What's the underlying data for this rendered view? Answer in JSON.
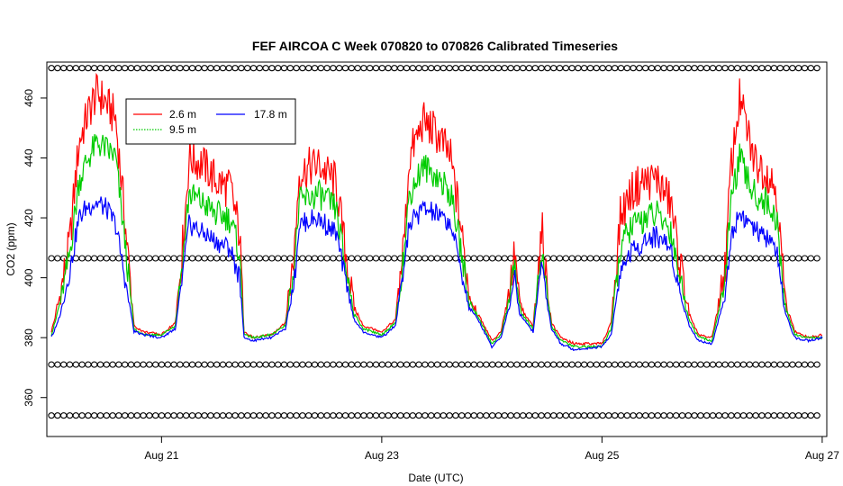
{
  "chart_data": {
    "type": "line",
    "title": "FEF AIRCOA C  Week 070820 to 070826  Calibrated Timeseries",
    "xlabel": "Date (UTC)",
    "ylabel": "CO2 (ppm)",
    "x_unit": "date",
    "xlim": [
      "2007-08-19T23:00",
      "2007-08-27T01:00"
    ],
    "ylim": [
      347,
      472
    ],
    "x_ticks": [
      {
        "label": "Aug 21",
        "value": "2007-08-21T00:00"
      },
      {
        "label": "Aug 23",
        "value": "2007-08-23T00:00"
      },
      {
        "label": "Aug 25",
        "value": "2007-08-25T00:00"
      },
      {
        "label": "Aug 27",
        "value": "2007-08-27T00:00"
      }
    ],
    "y_ticks": [
      360,
      380,
      400,
      420,
      440,
      460
    ],
    "grid": false,
    "legend": {
      "placement": "top-left",
      "entries": [
        {
          "name": "2.6 m",
          "color": "#ff0000",
          "style": "solid"
        },
        {
          "name": "9.5 m",
          "color": "#00cc00",
          "style": "dotted"
        },
        {
          "name": "17.8 m",
          "color": "#0000ff",
          "style": "solid"
        }
      ]
    },
    "series": [
      {
        "name": "2.6 m",
        "color": "#ff0000",
        "points": [
          [
            "2007-08-20T00:00",
            382
          ],
          [
            "2007-08-20T02:00",
            395
          ],
          [
            "2007-08-20T04:00",
            412
          ],
          [
            "2007-08-20T06:00",
            445
          ],
          [
            "2007-08-20T08:00",
            455
          ],
          [
            "2007-08-20T10:00",
            462
          ],
          [
            "2007-08-20T12:00",
            458
          ],
          [
            "2007-08-20T14:00",
            453
          ],
          [
            "2007-08-20T16:00",
            420
          ],
          [
            "2007-08-20T18:00",
            384
          ],
          [
            "2007-08-20T20:00",
            382
          ],
          [
            "2007-08-21T00:00",
            381
          ],
          [
            "2007-08-21T03:00",
            385
          ],
          [
            "2007-08-21T05:00",
            418
          ],
          [
            "2007-08-21T06:00",
            440
          ],
          [
            "2007-08-21T09:00",
            438
          ],
          [
            "2007-08-21T12:00",
            432
          ],
          [
            "2007-08-21T15:00",
            430
          ],
          [
            "2007-08-21T17:00",
            415
          ],
          [
            "2007-08-21T18:00",
            382
          ],
          [
            "2007-08-21T20:00",
            380
          ],
          [
            "2007-08-22T00:00",
            381
          ],
          [
            "2007-08-22T03:00",
            385
          ],
          [
            "2007-08-22T05:00",
            410
          ],
          [
            "2007-08-22T06:00",
            435
          ],
          [
            "2007-08-22T10:00",
            438
          ],
          [
            "2007-08-22T14:00",
            432
          ],
          [
            "2007-08-22T16:00",
            410
          ],
          [
            "2007-08-22T18:00",
            390
          ],
          [
            "2007-08-22T20:00",
            384
          ],
          [
            "2007-08-23T00:00",
            382
          ],
          [
            "2007-08-23T03:00",
            386
          ],
          [
            "2007-08-23T05:00",
            415
          ],
          [
            "2007-08-23T06:00",
            440
          ],
          [
            "2007-08-23T09:00",
            452
          ],
          [
            "2007-08-23T12:00",
            448
          ],
          [
            "2007-08-23T15:00",
            440
          ],
          [
            "2007-08-23T17:00",
            420
          ],
          [
            "2007-08-23T19:00",
            395
          ],
          [
            "2007-08-23T21:00",
            388
          ],
          [
            "2007-08-24T00:00",
            379
          ],
          [
            "2007-08-24T02:00",
            382
          ],
          [
            "2007-08-24T04:00",
            398
          ],
          [
            "2007-08-24T05:00",
            408
          ],
          [
            "2007-08-24T06:00",
            392
          ],
          [
            "2007-08-24T07:00",
            388
          ],
          [
            "2007-08-24T08:00",
            386
          ],
          [
            "2007-08-24T09:00",
            384
          ],
          [
            "2007-08-24T10:00",
            402
          ],
          [
            "2007-08-24T11:00",
            415
          ],
          [
            "2007-08-24T12:00",
            398
          ],
          [
            "2007-08-24T13:00",
            385
          ],
          [
            "2007-08-24T15:00",
            380
          ],
          [
            "2007-08-24T18:00",
            378
          ],
          [
            "2007-08-25T00:00",
            378
          ],
          [
            "2007-08-25T02:00",
            385
          ],
          [
            "2007-08-25T04:00",
            420
          ],
          [
            "2007-08-25T06:00",
            428
          ],
          [
            "2007-08-25T09:00",
            432
          ],
          [
            "2007-08-25T12:00",
            433
          ],
          [
            "2007-08-25T15:00",
            425
          ],
          [
            "2007-08-25T17:00",
            405
          ],
          [
            "2007-08-25T19:00",
            388
          ],
          [
            "2007-08-25T21:00",
            381
          ],
          [
            "2007-08-26T00:00",
            380
          ],
          [
            "2007-08-26T03:00",
            405
          ],
          [
            "2007-08-26T04:00",
            435
          ],
          [
            "2007-08-26T06:00",
            460
          ],
          [
            "2007-08-26T09:00",
            440
          ],
          [
            "2007-08-26T12:00",
            435
          ],
          [
            "2007-08-26T14:00",
            430
          ],
          [
            "2007-08-26T15:00",
            410
          ],
          [
            "2007-08-26T16:00",
            392
          ],
          [
            "2007-08-26T18:00",
            382
          ],
          [
            "2007-08-26T21:00",
            380
          ],
          [
            "2007-08-27T00:00",
            381
          ]
        ]
      },
      {
        "name": "9.5 m",
        "color": "#00cc00",
        "points": [
          [
            "2007-08-20T00:00",
            381
          ],
          [
            "2007-08-20T02:00",
            392
          ],
          [
            "2007-08-20T04:00",
            408
          ],
          [
            "2007-08-20T06:00",
            432
          ],
          [
            "2007-08-20T08:00",
            440
          ],
          [
            "2007-08-20T10:00",
            445
          ],
          [
            "2007-08-20T12:00",
            443
          ],
          [
            "2007-08-20T14:00",
            440
          ],
          [
            "2007-08-20T16:00",
            412
          ],
          [
            "2007-08-20T18:00",
            383
          ],
          [
            "2007-08-20T20:00",
            381
          ],
          [
            "2007-08-21T00:00",
            381
          ],
          [
            "2007-08-21T03:00",
            384
          ],
          [
            "2007-08-21T05:00",
            412
          ],
          [
            "2007-08-21T06:00",
            428
          ],
          [
            "2007-08-21T09:00",
            425
          ],
          [
            "2007-08-21T12:00",
            421
          ],
          [
            "2007-08-21T15:00",
            420
          ],
          [
            "2007-08-21T17:00",
            408
          ],
          [
            "2007-08-21T18:00",
            381
          ],
          [
            "2007-08-21T20:00",
            380
          ],
          [
            "2007-08-22T00:00",
            381
          ],
          [
            "2007-08-22T03:00",
            384
          ],
          [
            "2007-08-22T05:00",
            405
          ],
          [
            "2007-08-22T06:00",
            425
          ],
          [
            "2007-08-22T10:00",
            428
          ],
          [
            "2007-08-22T14:00",
            423
          ],
          [
            "2007-08-22T16:00",
            405
          ],
          [
            "2007-08-22T18:00",
            388
          ],
          [
            "2007-08-22T20:00",
            383
          ],
          [
            "2007-08-23T00:00",
            381
          ],
          [
            "2007-08-23T03:00",
            385
          ],
          [
            "2007-08-23T05:00",
            410
          ],
          [
            "2007-08-23T06:00",
            428
          ],
          [
            "2007-08-23T09:00",
            437
          ],
          [
            "2007-08-23T12:00",
            434
          ],
          [
            "2007-08-23T15:00",
            428
          ],
          [
            "2007-08-23T17:00",
            412
          ],
          [
            "2007-08-23T19:00",
            392
          ],
          [
            "2007-08-23T21:00",
            387
          ],
          [
            "2007-08-24T00:00",
            378
          ],
          [
            "2007-08-24T02:00",
            381
          ],
          [
            "2007-08-24T04:00",
            395
          ],
          [
            "2007-08-24T05:00",
            404
          ],
          [
            "2007-08-24T06:00",
            390
          ],
          [
            "2007-08-24T07:00",
            387
          ],
          [
            "2007-08-24T08:00",
            385
          ],
          [
            "2007-08-24T09:00",
            383
          ],
          [
            "2007-08-24T10:00",
            398
          ],
          [
            "2007-08-24T11:00",
            410
          ],
          [
            "2007-08-24T12:00",
            395
          ],
          [
            "2007-08-24T13:00",
            384
          ],
          [
            "2007-08-24T15:00",
            379
          ],
          [
            "2007-08-24T18:00",
            377
          ],
          [
            "2007-08-25T00:00",
            377
          ],
          [
            "2007-08-25T02:00",
            383
          ],
          [
            "2007-08-25T04:00",
            410
          ],
          [
            "2007-08-25T06:00",
            416
          ],
          [
            "2007-08-25T09:00",
            420
          ],
          [
            "2007-08-25T12:00",
            421
          ],
          [
            "2007-08-25T15:00",
            416
          ],
          [
            "2007-08-25T17:00",
            400
          ],
          [
            "2007-08-25T19:00",
            386
          ],
          [
            "2007-08-25T21:00",
            380
          ],
          [
            "2007-08-26T00:00",
            379
          ],
          [
            "2007-08-26T03:00",
            400
          ],
          [
            "2007-08-26T04:00",
            425
          ],
          [
            "2007-08-26T06:00",
            440
          ],
          [
            "2007-08-26T09:00",
            428
          ],
          [
            "2007-08-26T12:00",
            425
          ],
          [
            "2007-08-26T14:00",
            420
          ],
          [
            "2007-08-26T15:00",
            403
          ],
          [
            "2007-08-26T16:00",
            390
          ],
          [
            "2007-08-26T18:00",
            381
          ],
          [
            "2007-08-26T21:00",
            380
          ],
          [
            "2007-08-27T00:00",
            380
          ]
        ]
      },
      {
        "name": "17.8 m",
        "color": "#0000ff",
        "points": [
          [
            "2007-08-20T00:00",
            380
          ],
          [
            "2007-08-20T02:00",
            388
          ],
          [
            "2007-08-20T04:00",
            402
          ],
          [
            "2007-08-20T06:00",
            420
          ],
          [
            "2007-08-20T08:00",
            424
          ],
          [
            "2007-08-20T10:00",
            425
          ],
          [
            "2007-08-20T12:00",
            423
          ],
          [
            "2007-08-20T14:00",
            418
          ],
          [
            "2007-08-20T16:00",
            400
          ],
          [
            "2007-08-20T18:00",
            382
          ],
          [
            "2007-08-20T20:00",
            381
          ],
          [
            "2007-08-21T00:00",
            380
          ],
          [
            "2007-08-21T03:00",
            383
          ],
          [
            "2007-08-21T05:00",
            405
          ],
          [
            "2007-08-21T06:00",
            418
          ],
          [
            "2007-08-21T09:00",
            415
          ],
          [
            "2007-08-21T12:00",
            412
          ],
          [
            "2007-08-21T15:00",
            410
          ],
          [
            "2007-08-21T17:00",
            400
          ],
          [
            "2007-08-21T18:00",
            380
          ],
          [
            "2007-08-21T20:00",
            379
          ],
          [
            "2007-08-22T00:00",
            380
          ],
          [
            "2007-08-22T03:00",
            383
          ],
          [
            "2007-08-22T05:00",
            400
          ],
          [
            "2007-08-22T06:00",
            418
          ],
          [
            "2007-08-22T10:00",
            420
          ],
          [
            "2007-08-22T14:00",
            415
          ],
          [
            "2007-08-22T16:00",
            400
          ],
          [
            "2007-08-22T18:00",
            386
          ],
          [
            "2007-08-22T20:00",
            382
          ],
          [
            "2007-08-23T00:00",
            380
          ],
          [
            "2007-08-23T03:00",
            384
          ],
          [
            "2007-08-23T05:00",
            405
          ],
          [
            "2007-08-23T06:00",
            418
          ],
          [
            "2007-08-23T09:00",
            423
          ],
          [
            "2007-08-23T12:00",
            421
          ],
          [
            "2007-08-23T15:00",
            418
          ],
          [
            "2007-08-23T17:00",
            405
          ],
          [
            "2007-08-23T19:00",
            390
          ],
          [
            "2007-08-23T21:00",
            386
          ],
          [
            "2007-08-24T00:00",
            377
          ],
          [
            "2007-08-24T02:00",
            380
          ],
          [
            "2007-08-24T04:00",
            392
          ],
          [
            "2007-08-24T05:00",
            400
          ],
          [
            "2007-08-24T06:00",
            388
          ],
          [
            "2007-08-24T07:00",
            386
          ],
          [
            "2007-08-24T08:00",
            384
          ],
          [
            "2007-08-24T09:00",
            382
          ],
          [
            "2007-08-24T10:00",
            395
          ],
          [
            "2007-08-24T11:00",
            405
          ],
          [
            "2007-08-24T12:00",
            392
          ],
          [
            "2007-08-24T13:00",
            383
          ],
          [
            "2007-08-24T15:00",
            378
          ],
          [
            "2007-08-24T18:00",
            376
          ],
          [
            "2007-08-25T00:00",
            377
          ],
          [
            "2007-08-25T02:00",
            381
          ],
          [
            "2007-08-25T04:00",
            402
          ],
          [
            "2007-08-25T06:00",
            408
          ],
          [
            "2007-08-25T09:00",
            412
          ],
          [
            "2007-08-25T12:00",
            414
          ],
          [
            "2007-08-25T15:00",
            410
          ],
          [
            "2007-08-25T17:00",
            395
          ],
          [
            "2007-08-25T19:00",
            384
          ],
          [
            "2007-08-25T21:00",
            379
          ],
          [
            "2007-08-26T00:00",
            378
          ],
          [
            "2007-08-26T03:00",
            395
          ],
          [
            "2007-08-26T04:00",
            413
          ],
          [
            "2007-08-26T06:00",
            422
          ],
          [
            "2007-08-26T09:00",
            416
          ],
          [
            "2007-08-26T12:00",
            413
          ],
          [
            "2007-08-26T14:00",
            410
          ],
          [
            "2007-08-26T15:00",
            398
          ],
          [
            "2007-08-26T16:00",
            388
          ],
          [
            "2007-08-26T18:00",
            380
          ],
          [
            "2007-08-26T21:00",
            379
          ],
          [
            "2007-08-27T00:00",
            380
          ]
        ]
      }
    ],
    "marker_rows": [
      {
        "y": 470,
        "start": "2007-08-20T00:00",
        "end": "2007-08-27T00:00",
        "symbol": "o"
      },
      {
        "y": 406.5,
        "start": "2007-08-20T00:00",
        "end": "2007-08-27T00:00",
        "symbol": "o"
      },
      {
        "y": 371,
        "start": "2007-08-20T00:00",
        "end": "2007-08-27T00:00",
        "symbol": "o"
      },
      {
        "y": 354,
        "start": "2007-08-20T00:00",
        "end": "2007-08-27T00:00",
        "symbol": "o"
      }
    ]
  }
}
